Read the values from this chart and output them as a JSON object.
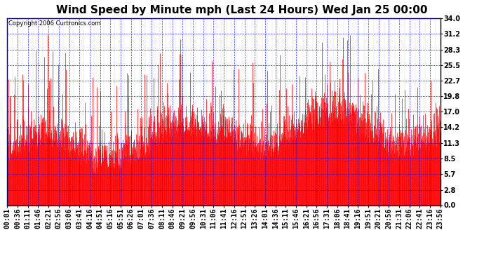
{
  "title": "Wind Speed by Minute mph (Last 24 Hours) Wed Jan 25 00:00",
  "copyright": "Copyright 2006 Curtronics.com",
  "yticks": [
    0.0,
    2.8,
    5.7,
    8.5,
    11.3,
    14.2,
    17.0,
    19.8,
    22.7,
    25.5,
    28.3,
    31.2,
    34.0
  ],
  "ymax": 34.0,
  "ymin": 0.0,
  "xtick_labels": [
    "00:01",
    "00:36",
    "01:11",
    "01:46",
    "02:21",
    "02:56",
    "03:06",
    "03:41",
    "04:16",
    "04:51",
    "05:16",
    "05:51",
    "06:26",
    "07:01",
    "07:36",
    "08:11",
    "08:46",
    "09:21",
    "09:56",
    "10:31",
    "11:06",
    "11:41",
    "12:16",
    "12:51",
    "13:26",
    "14:01",
    "14:36",
    "15:11",
    "15:46",
    "16:21",
    "16:56",
    "17:31",
    "18:06",
    "18:41",
    "19:16",
    "19:51",
    "20:21",
    "20:56",
    "21:31",
    "22:06",
    "22:41",
    "23:16",
    "23:56"
  ],
  "line_color": "#FF0000",
  "bg_color": "#FFFFFF",
  "plot_bg_color": "#FFFFFF",
  "grid_color": "#0000FF",
  "title_fontsize": 11,
  "copyright_fontsize": 6,
  "tick_fontsize": 7,
  "seed": 42,
  "num_points": 1440
}
